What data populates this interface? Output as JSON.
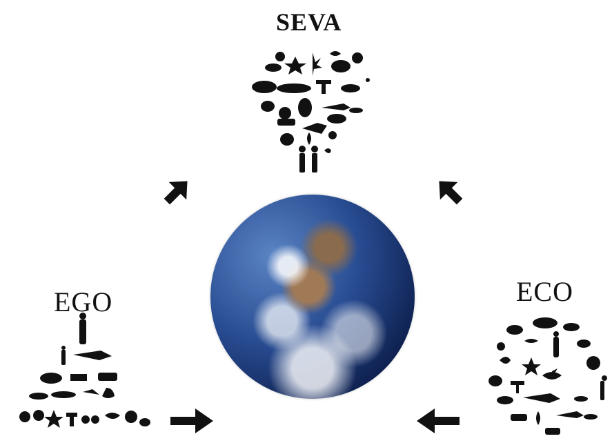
{
  "labels": {
    "seva": "SEVA",
    "ego": "EGO",
    "eco": "ECO"
  },
  "colors": {
    "silhouette": "#111111",
    "background": "#ffffff"
  },
  "icons": {
    "center": "earth-globe-icon",
    "seva_cluster": "heart-of-animals-and-humans-icon",
    "ego_cluster": "pyramid-of-life-with-human-on-top-icon",
    "eco_cluster": "circle-of-life-icon",
    "arrows": "arrow-icon"
  }
}
